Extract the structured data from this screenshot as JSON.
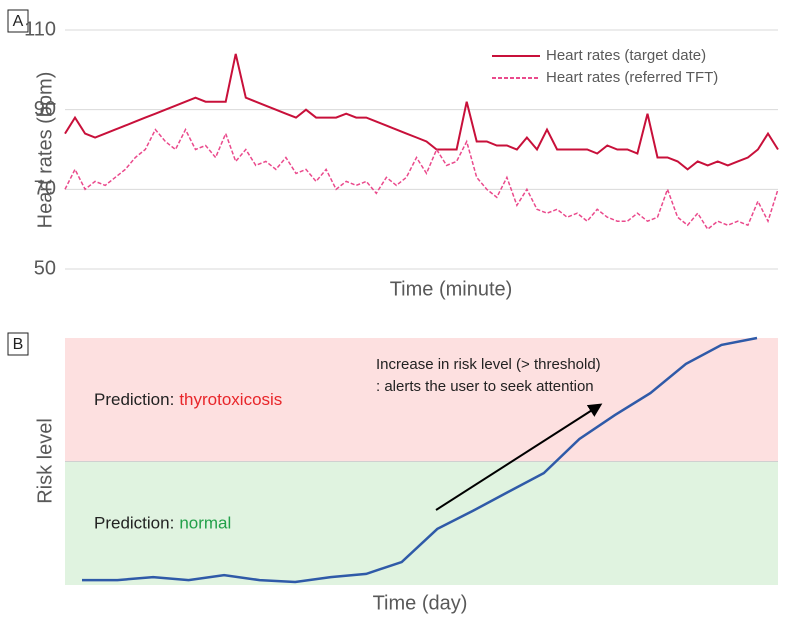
{
  "chart_data": [
    {
      "type": "line",
      "panel": "A",
      "ylabel": "Heart rates (bpm)",
      "xlabel": "Time (minute)",
      "ylim": [
        50,
        110
      ],
      "yticks": [
        50,
        70,
        90,
        110
      ],
      "grid": true,
      "legend": "upper right",
      "series": [
        {
          "name": "Heart rates (target date)",
          "color": "#c8103a",
          "dashed": false,
          "values": [
            84,
            88,
            84,
            83,
            84,
            85,
            86,
            87,
            88,
            89,
            90,
            91,
            92,
            93,
            92,
            92,
            92,
            104,
            93,
            92,
            91,
            90,
            89,
            88,
            90,
            88,
            88,
            88,
            89,
            88,
            88,
            87,
            86,
            85,
            84,
            83,
            82,
            80,
            80,
            80,
            92,
            82,
            82,
            81,
            81,
            80,
            83,
            80,
            85,
            80,
            80,
            80,
            80,
            79,
            81,
            80,
            80,
            79,
            89,
            78,
            78,
            77,
            75,
            77,
            76,
            77,
            76,
            77,
            78,
            80,
            84,
            80
          ]
        },
        {
          "name": "Heart rates (referred TFT)",
          "color": "#ea4a8c",
          "dashed": true,
          "values": [
            70,
            75,
            70,
            72,
            71,
            73,
            75,
            78,
            80,
            85,
            82,
            80,
            85,
            80,
            81,
            78,
            84,
            77,
            80,
            76,
            77,
            75,
            78,
            74,
            75,
            72,
            75,
            70,
            72,
            71,
            72,
            69,
            73,
            71,
            73,
            78,
            74,
            80,
            76,
            77,
            82,
            73,
            70,
            68,
            73,
            66,
            70,
            65,
            64,
            65,
            63,
            64,
            62,
            65,
            63,
            62,
            62,
            64,
            62,
            63,
            70,
            63,
            61,
            64,
            60,
            62,
            61,
            62,
            61,
            67,
            62,
            70
          ]
        }
      ]
    },
    {
      "type": "line",
      "panel": "B",
      "ylabel": "Risk level",
      "xlabel": "Time (day)",
      "ylim": [
        0,
        100
      ],
      "threshold": 50,
      "regions": [
        {
          "prefix": "Prediction:",
          "label": "thyrotoxicosis",
          "label_color": "#e8262a",
          "fill": "#fde0e0",
          "range": [
            50,
            100
          ]
        },
        {
          "prefix": "Prediction:",
          "label": "normal",
          "label_color": "#22a04a",
          "fill": "#e0f3e0",
          "range": [
            0,
            50
          ]
        }
      ],
      "annotation": [
        "Increase in risk level (> threshold)",
        ": alerts the user to seek attention"
      ],
      "series": [
        {
          "name": null,
          "color": "#2f5aa8",
          "values": [
            2,
            2,
            3.2,
            2,
            4,
            2,
            1.2,
            3.2,
            4.5,
            9.3,
            22.7,
            30,
            37.7,
            45.3,
            59.1,
            68.8,
            77.7,
            89.5,
            97.2,
            100
          ]
        }
      ]
    }
  ]
}
